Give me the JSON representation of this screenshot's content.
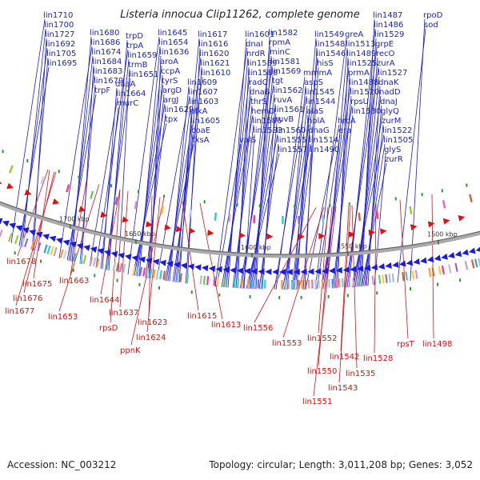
{
  "title": "Listeria innocua Clip11262, complete genome",
  "colors": {
    "forward": "#1b1bd8",
    "reverse": "#e01010",
    "backbone": "#888888",
    "marker": "#2a9a2a"
  },
  "kbp_marks": [
    "1700 kbp",
    "1650 kbp",
    "1600 kbp",
    "1550 kbp",
    "1500 kbp"
  ],
  "forward_labels": [
    "lin1710",
    "lin1700",
    "lin1727",
    "lin1692",
    "lin1705",
    "lin1695",
    "lin1680",
    "lin1686",
    "lin1674",
    "lin1684",
    "lin1683",
    "lin1679",
    "trpF",
    "trpD",
    "trpA",
    "lin1659",
    "trmB",
    "lin1651",
    "daaA",
    "lin1664",
    "murC",
    "lin1645",
    "lin1654",
    "lin1636",
    "aroA",
    "ccpA",
    "tyrS",
    "argD",
    "argJ",
    "lin1629",
    "tpx",
    "lin1617",
    "lin1616",
    "lin1620",
    "lin1621",
    "lin1610",
    "lin1609",
    "lin1607",
    "lin1603",
    "pfkA",
    "lin1605",
    "coaE",
    "fxsA",
    "lin1601",
    "dnaI",
    "nrdR",
    "lin1589",
    "lin1588",
    "radC",
    "dnaB",
    "thrS",
    "hemD",
    "lin1586",
    "lin1583",
    "valS",
    "lin1582",
    "rpmA",
    "minC",
    "lin1581",
    "lin1569",
    "tgt",
    "lin1562",
    "ruvA",
    "lin1561",
    "ruvB",
    "lin1560",
    "lin1555",
    "lin1557",
    "lin1549",
    "lin1548",
    "lin1546",
    "hisS",
    "mmmA",
    "aspS",
    "lin1545",
    "lin1544",
    "alaS",
    "holA",
    "dnaG",
    "lin1514",
    "lin1490",
    "greA",
    "lin1513",
    "lin1489",
    "lin1525",
    "prmA",
    "lin1488",
    "lin1520",
    "rpsU",
    "lin1530",
    "hrcA",
    "era",
    "lin1487",
    "lin1486",
    "lin1529",
    "grpE",
    "recO",
    "zurA",
    "lin1527",
    "dnaK",
    "nadD",
    "dnaJ",
    "glyQ",
    "zurM",
    "lin1522",
    "lin1505",
    "glyS",
    "zurR",
    "rpoD",
    "sod"
  ],
  "reverse_labels": [
    "lin1678",
    "lin1675",
    "lin1676",
    "lin1677",
    "lin1663",
    "lin1653",
    "lin1644",
    "lin1637",
    "rpsD",
    "lin1623",
    "lin1624",
    "ppnK",
    "lin1615",
    "lin1613",
    "lin1556",
    "lin1553",
    "lin1552",
    "lin1550",
    "lin1551",
    "lin1542",
    "lin1543",
    "lin1535",
    "lin1528",
    "rpsT",
    "lin1498"
  ],
  "footer": {
    "accession": "Accession: NC_003212",
    "stats": "Topology: circular; Length: 3,011,208 bp; Genes: 3,052"
  }
}
